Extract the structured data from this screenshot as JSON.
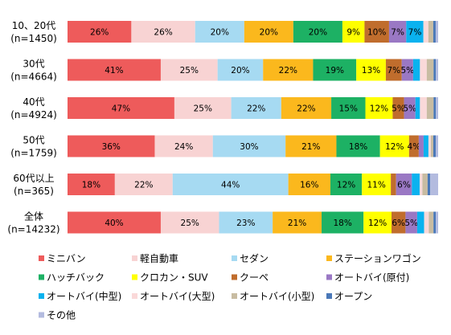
{
  "chart_data": {
    "type": "bar",
    "orientation": "horizontal",
    "stacked": true,
    "normalized_percent": true,
    "legend_position": "bottom",
    "grid": false,
    "categories": [
      [
        "10、20代",
        "(n=1450)"
      ],
      [
        "30代",
        "(n=4664)"
      ],
      [
        "40代",
        "(n=4924)"
      ],
      [
        "50代",
        "(n=1759)"
      ],
      [
        "60代以上",
        "(n=365)"
      ],
      [
        "全体",
        "(n=14232)"
      ]
    ],
    "series": [
      {
        "name": "ミニバン",
        "color": "#ee5b5b",
        "values": [
          26,
          41,
          47,
          36,
          18,
          40
        ],
        "labels": [
          "26%",
          "41%",
          "47%",
          "36%",
          "18%",
          "40%"
        ]
      },
      {
        "name": "軽自動車",
        "color": "#f8d3d3",
        "values": [
          26,
          25,
          25,
          24,
          22,
          25
        ],
        "labels": [
          "26%",
          "25%",
          "25%",
          "24%",
          "22%",
          "25%"
        ]
      },
      {
        "name": "セダン",
        "color": "#a6daf2",
        "values": [
          20,
          20,
          22,
          30,
          44,
          23
        ],
        "labels": [
          "20%",
          "20%",
          "22%",
          "30%",
          "44%",
          "23%"
        ]
      },
      {
        "name": "ステーションワゴン",
        "color": "#fbb81d",
        "values": [
          20,
          22,
          22,
          21,
          16,
          21
        ],
        "labels": [
          "20%",
          "22%",
          "22%",
          "21%",
          "16%",
          "21%"
        ]
      },
      {
        "name": "ハッチバック",
        "color": "#1db164",
        "values": [
          20,
          19,
          15,
          18,
          12,
          18
        ],
        "labels": [
          "20%",
          "19%",
          "15%",
          "18%",
          "12%",
          "18%"
        ]
      },
      {
        "name": "クロカン・SUV",
        "color": "#ffff00",
        "values": [
          9,
          13,
          12,
          12,
          11,
          12
        ],
        "labels": [
          "9%",
          "13%",
          "12%",
          "12%",
          "11%",
          "12%"
        ]
      },
      {
        "name": "クーペ",
        "color": "#c06d2d",
        "values": [
          10,
          7,
          5,
          4,
          2,
          6
        ],
        "labels": [
          "10%",
          "7%",
          "5%",
          "4%",
          "",
          "6%"
        ]
      },
      {
        "name": "オートバイ(原付)",
        "color": "#9a78c4",
        "values": [
          7,
          5,
          5,
          2,
          6,
          5
        ],
        "labels": [
          "7%",
          "5%",
          "5%",
          "",
          "6%",
          "5%"
        ]
      },
      {
        "name": "オートバイ(中型)",
        "color": "#0ab2ef",
        "values": [
          7,
          3,
          2,
          2,
          3,
          3
        ],
        "labels": [
          "7%",
          "",
          "",
          "",
          "",
          ""
        ]
      },
      {
        "name": "オートバイ(大型)",
        "color": "#fad9d9",
        "values": [
          2,
          3,
          3,
          1,
          1,
          2
        ],
        "labels": [
          "",
          "",
          "",
          "",
          "",
          ""
        ]
      },
      {
        "name": "オートバイ(小型)",
        "color": "#c8bca2",
        "values": [
          2,
          3,
          3,
          1,
          2,
          2
        ],
        "labels": [
          "",
          "",
          "",
          "",
          "",
          ""
        ]
      },
      {
        "name": "オープン",
        "color": "#4a78b8",
        "values": [
          1,
          1,
          1,
          1,
          1,
          1
        ],
        "labels": [
          "",
          "",
          "",
          "",
          "",
          ""
        ]
      },
      {
        "name": "その他",
        "color": "#b3bbdf",
        "values": [
          1,
          1,
          1,
          1,
          3,
          1
        ],
        "labels": [
          "",
          "",
          "",
          "",
          "",
          ""
        ]
      }
    ]
  }
}
